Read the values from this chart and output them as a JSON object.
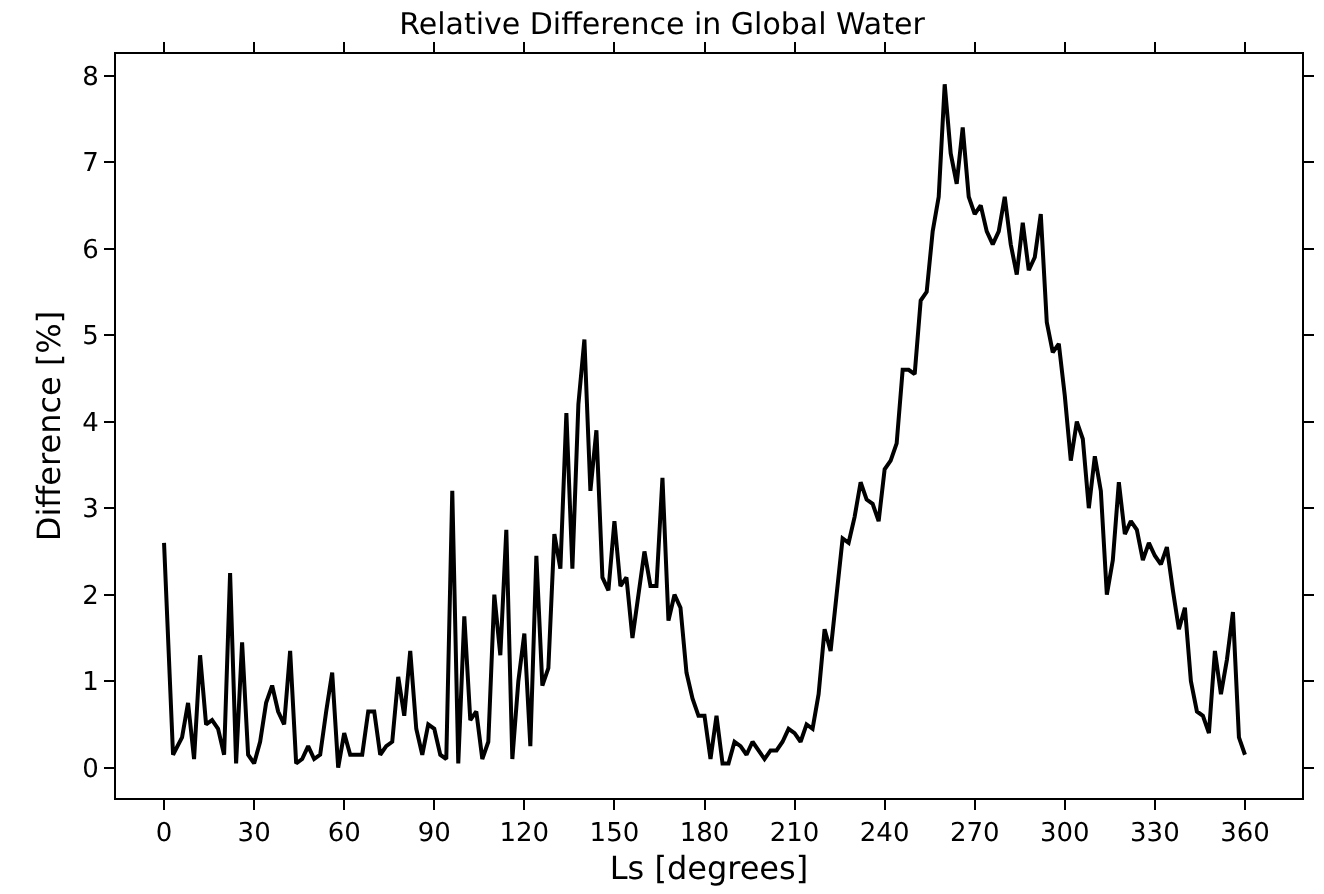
{
  "chart_data": {
    "type": "line",
    "title": "Relative Difference in Global Water",
    "xlabel": "Ls [degrees]",
    "ylabel": "Difference [%]",
    "x": [
      0,
      3,
      6,
      8,
      10,
      12,
      14,
      16,
      18,
      20,
      22,
      24,
      26,
      28,
      30,
      32,
      34,
      36,
      38,
      40,
      42,
      44,
      46,
      48,
      50,
      52,
      54,
      56,
      58,
      60,
      62,
      64,
      66,
      68,
      70,
      72,
      74,
      76,
      78,
      80,
      82,
      84,
      86,
      88,
      90,
      92,
      94,
      96,
      98,
      100,
      102,
      104,
      106,
      108,
      110,
      112,
      114,
      116,
      118,
      120,
      122,
      124,
      126,
      128,
      130,
      132,
      134,
      136,
      138,
      140,
      142,
      144,
      146,
      148,
      150,
      152,
      154,
      156,
      158,
      160,
      162,
      164,
      166,
      168,
      170,
      172,
      174,
      176,
      178,
      180,
      182,
      184,
      186,
      188,
      190,
      192,
      194,
      196,
      198,
      200,
      202,
      204,
      206,
      208,
      210,
      212,
      214,
      216,
      218,
      220,
      222,
      224,
      226,
      228,
      230,
      232,
      234,
      236,
      238,
      240,
      242,
      244,
      246,
      248,
      250,
      252,
      254,
      256,
      258,
      260,
      262,
      264,
      266,
      268,
      270,
      272,
      274,
      276,
      278,
      280,
      282,
      284,
      286,
      288,
      290,
      292,
      294,
      296,
      298,
      300,
      302,
      304,
      306,
      308,
      310,
      312,
      314,
      316,
      318,
      320,
      322,
      324,
      326,
      328,
      330,
      332,
      334,
      336,
      338,
      340,
      342,
      344,
      346,
      348,
      350,
      352,
      354,
      356,
      358,
      360
    ],
    "series": [
      {
        "color": "#000000",
        "values": [
          2.6,
          0.15,
          0.35,
          0.75,
          0.1,
          1.3,
          0.5,
          0.55,
          0.45,
          0.15,
          2.25,
          0.05,
          1.45,
          0.15,
          0.05,
          0.3,
          0.75,
          0.95,
          0.65,
          0.5,
          1.35,
          0.05,
          0.1,
          0.25,
          0.1,
          0.15,
          0.65,
          1.1,
          0.0,
          0.4,
          0.15,
          0.15,
          0.15,
          0.65,
          0.65,
          0.15,
          0.25,
          0.3,
          1.05,
          0.6,
          1.35,
          0.45,
          0.15,
          0.5,
          0.45,
          0.15,
          0.1,
          3.2,
          0.05,
          1.75,
          0.55,
          0.65,
          0.1,
          0.3,
          2.0,
          1.3,
          2.75,
          0.1,
          1.0,
          1.55,
          0.25,
          2.45,
          0.95,
          1.15,
          2.7,
          2.3,
          4.1,
          2.3,
          4.2,
          4.95,
          3.2,
          3.9,
          2.2,
          2.05,
          2.85,
          2.1,
          2.2,
          1.5,
          2.0,
          2.5,
          2.1,
          2.1,
          3.35,
          1.7,
          2.0,
          1.85,
          1.1,
          0.8,
          0.6,
          0.6,
          0.1,
          0.6,
          0.05,
          0.05,
          0.3,
          0.25,
          0.15,
          0.3,
          0.2,
          0.1,
          0.2,
          0.2,
          0.3,
          0.45,
          0.4,
          0.3,
          0.5,
          0.45,
          0.85,
          1.6,
          1.35,
          2.0,
          2.65,
          2.6,
          2.9,
          3.3,
          3.1,
          3.05,
          2.85,
          3.45,
          3.55,
          3.75,
          4.6,
          4.6,
          4.55,
          5.4,
          5.5,
          6.2,
          6.6,
          7.9,
          7.1,
          6.75,
          7.4,
          6.6,
          6.4,
          6.5,
          6.2,
          6.05,
          6.2,
          6.6,
          6.05,
          5.7,
          6.3,
          5.75,
          5.9,
          6.4,
          5.15,
          4.8,
          4.9,
          4.3,
          3.55,
          4.0,
          3.8,
          3.0,
          3.6,
          3.2,
          2.0,
          2.4,
          3.3,
          2.7,
          2.85,
          2.75,
          2.4,
          2.6,
          2.45,
          2.35,
          2.55,
          2.05,
          1.6,
          1.85,
          1.0,
          0.65,
          0.6,
          0.4,
          1.35,
          0.85,
          1.25,
          1.8,
          0.35,
          0.15
        ]
      }
    ],
    "xlim": [
      -16,
      379
    ],
    "xticks": [
      0,
      30,
      60,
      90,
      120,
      150,
      180,
      210,
      240,
      270,
      300,
      330,
      360
    ],
    "ylim": [
      -0.35,
      8.25
    ],
    "yticks": [
      0,
      1,
      2,
      3,
      4,
      5,
      6,
      7,
      8
    ],
    "grid": false,
    "marker": "none",
    "line_style": "solid"
  }
}
